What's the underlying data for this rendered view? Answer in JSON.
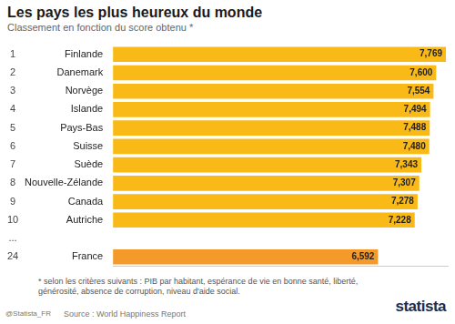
{
  "chart_data": {
    "type": "bar",
    "orientation": "horizontal",
    "title": "Les pays les plus heureux du monde",
    "subtitle": "Classement en fonction du score obtenu *",
    "ranks": [
      1,
      2,
      3,
      4,
      5,
      6,
      7,
      8,
      9,
      10,
      "...",
      24
    ],
    "categories": [
      "Finlande",
      "Danemark",
      "Norvège",
      "Islande",
      "Pays-Bas",
      "Suisse",
      "Suède",
      "Nouvelle-Zélande",
      "Canada",
      "Autriche",
      null,
      "France"
    ],
    "values": [
      7.769,
      7.6,
      7.554,
      7.494,
      7.488,
      7.48,
      7.343,
      7.307,
      7.278,
      7.228,
      null,
      6.592
    ],
    "value_labels": [
      "7,769",
      "7,600",
      "7,554",
      "7,494",
      "7,488",
      "7,480",
      "7,343",
      "7,307",
      "7,278",
      "7,228",
      null,
      "6,592"
    ],
    "colors": [
      "#f9b917",
      "#f9b917",
      "#f9b917",
      "#f9b917",
      "#f9b917",
      "#f9b917",
      "#f9b917",
      "#f9b917",
      "#f9b917",
      "#f9b917",
      "#f9b917",
      "#f39a2b"
    ],
    "xlim": [
      2,
      7.8
    ],
    "grid": false,
    "data_labels": true,
    "tick_labels": "y",
    "notes": "* selon les critères suivants : PIB par habitant, espérance de vie en bonne santé, liberté, générosité, absence de corruption, niveau d'aide social.",
    "source": "Source : World Happiness Report",
    "credit": "@Statista_FR",
    "logo": "statista"
  }
}
